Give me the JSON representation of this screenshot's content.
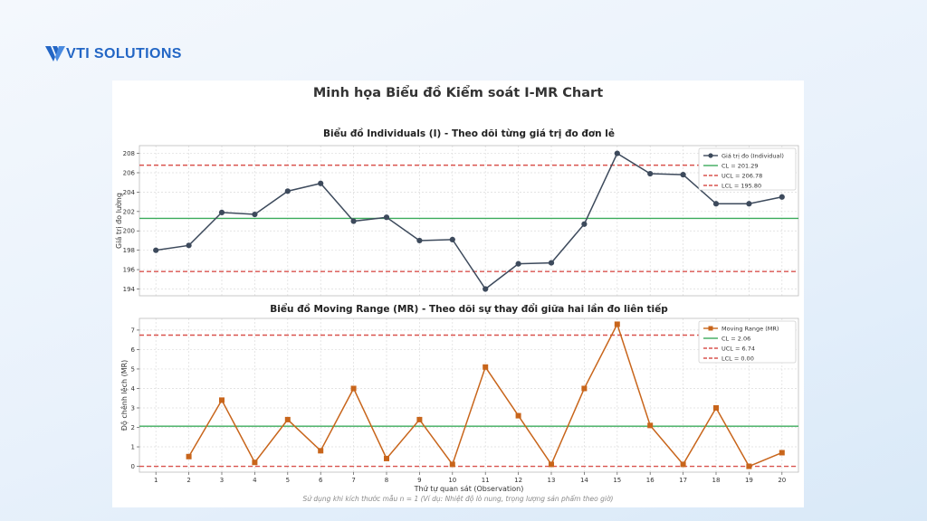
{
  "brand": {
    "logo_text": "VTI SOLUTIONS",
    "accent_color": "#2366c5"
  },
  "figure": {
    "suptitle": "Minh họa Biểu đồ Kiểm soát I-MR Chart",
    "footnote": "Sử dụng khi kích thước mẫu n = 1 (Ví dụ: Nhiệt độ lò nung, trọng lượng sản phẩm theo giờ)"
  },
  "chart_data": [
    {
      "type": "line",
      "title": "Biểu đồ Individuals (I) - Theo dõi từng giá trị đo đơn lẻ",
      "xlabel": "",
      "ylabel": "Giá trị đo lường",
      "x": [
        1,
        2,
        3,
        4,
        5,
        6,
        7,
        8,
        9,
        10,
        11,
        12,
        13,
        14,
        15,
        16,
        17,
        18,
        19,
        20
      ],
      "xlim": [
        0.5,
        20.5
      ],
      "ylim": [
        193.3,
        208.8
      ],
      "yticks": [
        194,
        196,
        198,
        200,
        202,
        204,
        206,
        208
      ],
      "grid": true,
      "legend_position": "top-right",
      "series": [
        {
          "name": "Giá trị đo (Individual)",
          "color": "#3d4a5c",
          "marker": "circle",
          "values": [
            198.0,
            198.5,
            201.9,
            201.7,
            204.1,
            204.9,
            201.0,
            201.4,
            199.0,
            199.1,
            194.0,
            196.6,
            196.7,
            200.7,
            208.0,
            205.9,
            205.8,
            202.8,
            202.8,
            203.5
          ]
        }
      ],
      "control_lines": [
        {
          "name": "CL = 201.29",
          "value": 201.29,
          "color": "#3cab5c",
          "style": "solid"
        },
        {
          "name": "UCL = 206.78",
          "value": 206.78,
          "color": "#d9534f",
          "style": "dashed"
        },
        {
          "name": "LCL = 195.80",
          "value": 195.8,
          "color": "#d9534f",
          "style": "dashed"
        }
      ]
    },
    {
      "type": "line",
      "title": "Biểu đồ Moving Range (MR) - Theo dõi sự thay đổi giữa hai lần đo liên tiếp",
      "xlabel": "Thứ tự quan sát (Observation)",
      "ylabel": "Độ chênh lệch (MR)",
      "x": [
        2,
        3,
        4,
        5,
        6,
        7,
        8,
        9,
        10,
        11,
        12,
        13,
        14,
        15,
        16,
        17,
        18,
        19,
        20
      ],
      "xticks": [
        1,
        2,
        3,
        4,
        5,
        6,
        7,
        8,
        9,
        10,
        11,
        12,
        13,
        14,
        15,
        16,
        17,
        18,
        19,
        20
      ],
      "xlim": [
        0.5,
        20.5
      ],
      "ylim": [
        -0.3,
        7.6
      ],
      "yticks": [
        0,
        1,
        2,
        3,
        4,
        5,
        6,
        7
      ],
      "grid": true,
      "legend_position": "top-right",
      "series": [
        {
          "name": "Moving Range (MR)",
          "color": "#c8651b",
          "marker": "square",
          "values": [
            0.5,
            3.4,
            0.2,
            2.4,
            0.8,
            4.0,
            0.4,
            2.4,
            0.1,
            5.1,
            2.6,
            0.1,
            4.0,
            7.3,
            2.1,
            0.1,
            3.0,
            0.0,
            0.7
          ]
        }
      ],
      "control_lines": [
        {
          "name": "CL = 2.06",
          "value": 2.06,
          "color": "#3cab5c",
          "style": "solid"
        },
        {
          "name": "UCL = 6.74",
          "value": 6.74,
          "color": "#d9534f",
          "style": "dashed"
        },
        {
          "name": "LCL = 0.00",
          "value": 0.0,
          "color": "#d9534f",
          "style": "dashed"
        }
      ]
    }
  ]
}
